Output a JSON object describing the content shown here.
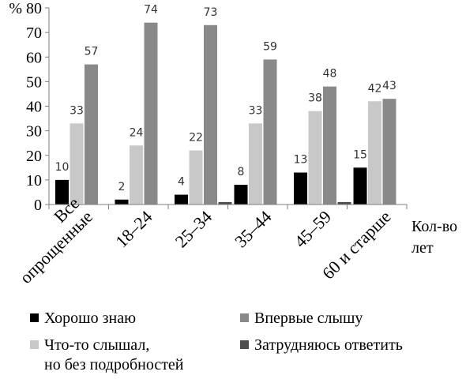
{
  "chart_data": {
    "type": "bar",
    "yunit": "%",
    "ylim": [
      0,
      80
    ],
    "yticks": [
      0,
      10,
      20,
      30,
      40,
      50,
      60,
      70,
      80
    ],
    "xlabel": "Кол-во лет",
    "categories": [
      [
        "Все",
        "опрощенные"
      ],
      [
        "18–24"
      ],
      [
        "25–34"
      ],
      [
        "35–44"
      ],
      [
        "45–59"
      ],
      [
        "60 и старше"
      ]
    ],
    "series": [
      {
        "name": "Хорошо знаю",
        "color": "#000000",
        "values": [
          10,
          2,
          4,
          8,
          13,
          15
        ],
        "labels": [
          "10",
          "2",
          "4",
          "8",
          "13",
          "15"
        ]
      },
      {
        "name": "Что-то слышал, но без подробностей",
        "name_lines": [
          "Что-то слышал,",
          "но без подробностей"
        ],
        "color": "#c8c8c8",
        "values": [
          33,
          24,
          22,
          33,
          38,
          42
        ],
        "labels": [
          "33",
          "24",
          "22",
          "33",
          "38",
          "42"
        ]
      },
      {
        "name": "Впервые слышу",
        "color": "#898989",
        "values": [
          57,
          74,
          73,
          59,
          48,
          43
        ],
        "labels": [
          "57",
          "74",
          "73",
          "59",
          "48",
          "43"
        ]
      },
      {
        "name": "Затрудняюсь ответить",
        "color": "#4d4d4d",
        "values": [
          0,
          0,
          1,
          0,
          1,
          0
        ],
        "labels": [
          "",
          "",
          "",
          "",
          "",
          ""
        ]
      }
    ],
    "grid": false,
    "legend_position": "bottom"
  }
}
